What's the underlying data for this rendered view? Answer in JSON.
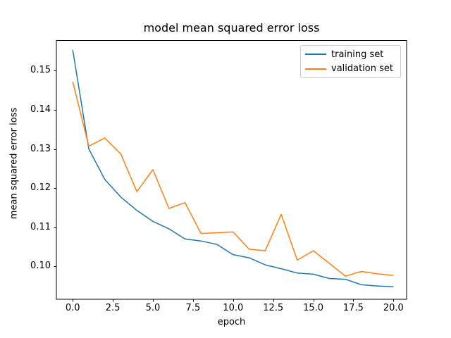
{
  "figure": {
    "background": "#ffffff",
    "frame_color": "#000000"
  },
  "chart_data": {
    "type": "line",
    "title": "model mean squared error loss",
    "xlabel": "epoch",
    "ylabel": "mean squared error loss",
    "x": [
      0,
      1,
      2,
      3,
      4,
      5,
      6,
      7,
      8,
      9,
      10,
      11,
      12,
      13,
      14,
      15,
      16,
      17,
      18,
      19,
      20
    ],
    "series": [
      {
        "name": "training set",
        "color": "#1f77b4",
        "values": [
          0.1553,
          0.13,
          0.1222,
          0.1177,
          0.1143,
          0.1115,
          0.1096,
          0.107,
          0.1065,
          0.1056,
          0.103,
          0.1022,
          0.1004,
          0.0994,
          0.0983,
          0.098,
          0.0969,
          0.0967,
          0.0953,
          0.095,
          0.0948
        ]
      },
      {
        "name": "validation set",
        "color": "#ff7f0e",
        "values": [
          0.1472,
          0.1307,
          0.1328,
          0.1287,
          0.1191,
          0.1247,
          0.1148,
          0.1163,
          0.1084,
          0.1086,
          0.1088,
          0.1044,
          0.104,
          0.1133,
          0.1016,
          0.104,
          0.1008,
          0.0975,
          0.0987,
          0.0981,
          0.0977
        ]
      }
    ],
    "xlim": [
      -1.02,
      20.82
    ],
    "ylim": [
      0.0916,
      0.1577
    ],
    "xticks": {
      "values": [
        0,
        2.5,
        5,
        7.5,
        10,
        12.5,
        15,
        17.5,
        20
      ],
      "labels": [
        "0.0",
        "2.5",
        "5.0",
        "7.5",
        "10.0",
        "12.5",
        "15.0",
        "17.5",
        "20.0"
      ]
    },
    "yticks": {
      "values": [
        0.1,
        0.11,
        0.12,
        0.13,
        0.14,
        0.15
      ],
      "labels": [
        "0.10",
        "0.11",
        "0.12",
        "0.13",
        "0.14",
        "0.15"
      ]
    },
    "grid": false,
    "legend": {
      "position": "upper right",
      "items": [
        "training set",
        "validation set"
      ]
    }
  }
}
